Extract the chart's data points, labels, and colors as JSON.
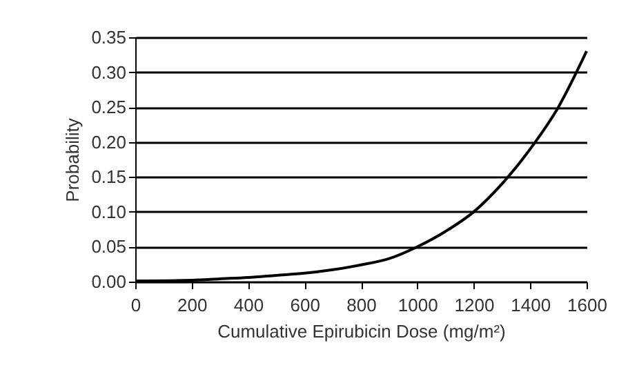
{
  "chart_data": {
    "type": "line",
    "xlabel": "Cumulative Epirubicin Dose (mg/m²)",
    "ylabel": "Probability",
    "x": [
      0,
      200,
      300,
      400,
      500,
      600,
      700,
      800,
      900,
      1000,
      1100,
      1200,
      1300,
      1400,
      1500,
      1600
    ],
    "series": [
      {
        "color": "#000000",
        "values": [
          0.001,
          0.002,
          0.004,
          0.006,
          0.009,
          0.012,
          0.017,
          0.024,
          0.033,
          0.05,
          0.072,
          0.1,
          0.14,
          0.19,
          0.25,
          0.33
        ]
      }
    ],
    "xlim": [
      0,
      1600
    ],
    "xticks": [
      0,
      200,
      400,
      600,
      800,
      1000,
      1200,
      1400,
      1600
    ],
    "ylim": [
      0,
      0.35
    ],
    "yticks": [
      {
        "value": 0,
        "label": "0.00"
      },
      {
        "value": 0.05,
        "label": "0.05"
      },
      {
        "value": 0.1,
        "label": "0.10"
      },
      {
        "value": 0.15,
        "label": "0.15"
      },
      {
        "value": 0.2,
        "label": "0.20"
      },
      {
        "value": 0.25,
        "label": "0.25"
      },
      {
        "value": 0.3,
        "label": "0.30"
      },
      {
        "value": 0.35,
        "label": "0.35"
      }
    ],
    "grid": "y",
    "marker": "none",
    "line_style": "solid"
  }
}
